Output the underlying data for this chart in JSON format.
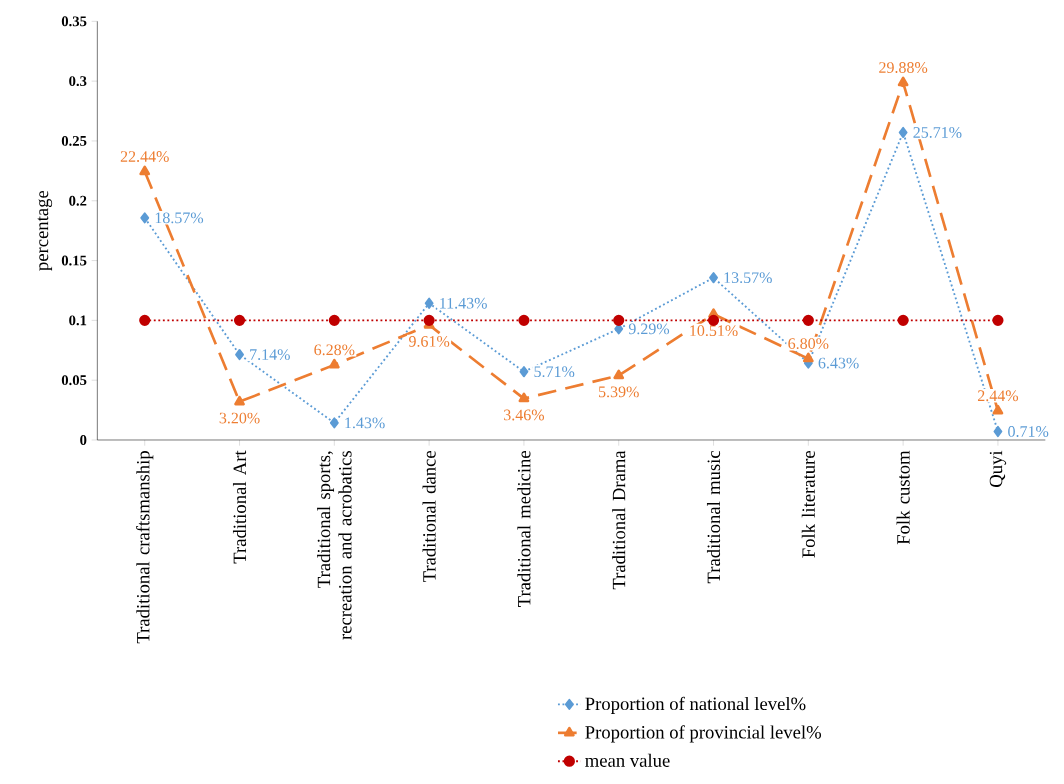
{
  "chart_data": {
    "type": "line",
    "ylabel": "percentage",
    "categories": [
      "Traditional craftsmanship",
      "Traditional Art",
      "Traditional sports, recreation and acrobatics",
      "Traditional dance",
      "Traditional medicine",
      "Traditional Drama",
      "Traditional music",
      "Folk literature",
      "Folk custom",
      "Quyi"
    ],
    "series": [
      {
        "name": "Proportion of national level%",
        "color": "#5b9bd5",
        "marker": "diamond",
        "line_style": "dotted",
        "values": [
          0.1857,
          0.0714,
          0.0143,
          0.1143,
          0.0571,
          0.0929,
          0.1357,
          0.0643,
          0.2571,
          0.0071
        ],
        "value_labels": [
          "18.57%",
          "7.14%",
          "1.43%",
          "11.43%",
          "5.71%",
          "9.29%",
          "13.57%",
          "6.43%",
          "25.71%",
          "0.71%"
        ]
      },
      {
        "name": "Proportion of provincial level%",
        "color": "#ed7d31",
        "marker": "triangle",
        "line_style": "dashed",
        "values": [
          0.2244,
          0.032,
          0.0628,
          0.0961,
          0.0346,
          0.0539,
          0.1051,
          0.068,
          0.2988,
          0.0244
        ],
        "value_labels": [
          "22.44%",
          "3.20%",
          "6.28%",
          "9.61%",
          "3.46%",
          "5.39%",
          "10.51%",
          "6.80%",
          "29.88%",
          "2.44%"
        ]
      },
      {
        "name": "mean value",
        "color": "#c00000",
        "marker": "circle",
        "line_style": "dotted",
        "values": [
          0.1,
          0.1,
          0.1,
          0.1,
          0.1,
          0.1,
          0.1,
          0.1,
          0.1,
          0.1
        ]
      }
    ],
    "ylim": [
      0,
      0.35
    ],
    "yticks": [
      0,
      0.05,
      0.1,
      0.15,
      0.2,
      0.25,
      0.3,
      0.35
    ],
    "legend": "bottom right",
    "grid": false
  }
}
